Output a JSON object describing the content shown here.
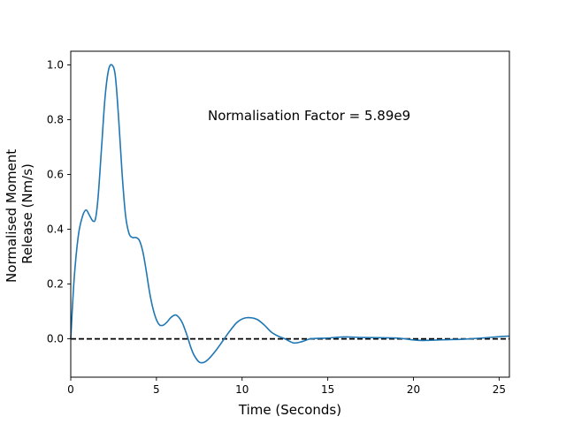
{
  "chart_data": {
    "type": "line",
    "title": "",
    "xlabel": "Time (Seconds)",
    "ylabel_lines": [
      "Normalised Moment",
      "Release (Nm/s)"
    ],
    "annotation": "Normalisation Factor = 5.89e9",
    "xlim": [
      0,
      25.6
    ],
    "ylim": [
      -0.14,
      1.05
    ],
    "x_ticks": [
      0,
      5,
      10,
      15,
      20,
      25
    ],
    "y_ticks": [
      0.0,
      0.2,
      0.4,
      0.6,
      0.8,
      1.0
    ],
    "x_tick_labels": [
      "0",
      "5",
      "10",
      "15",
      "20",
      "25"
    ],
    "y_tick_labels": [
      "0.0",
      "0.2",
      "0.4",
      "0.6",
      "0.8",
      "1.0"
    ],
    "grid": false,
    "reference_line": {
      "y": 0,
      "style": "dashed",
      "color": "#000000"
    },
    "series": [
      {
        "color": "#1f77b4",
        "x": [
          0,
          0.2,
          0.45,
          0.7,
          0.9,
          1.1,
          1.3,
          1.45,
          1.6,
          1.8,
          2.0,
          2.2,
          2.4,
          2.6,
          2.8,
          3.0,
          3.2,
          3.4,
          3.6,
          3.8,
          4.0,
          4.2,
          4.4,
          4.6,
          4.8,
          5.0,
          5.2,
          5.4,
          5.6,
          5.8,
          6.0,
          6.2,
          6.5,
          6.8,
          7.0,
          7.2,
          7.5,
          7.8,
          8.1,
          8.5,
          8.9,
          9.3,
          9.7,
          10.1,
          10.5,
          10.9,
          11.3,
          11.7,
          12.1,
          12.5,
          13.0,
          13.5,
          14.0,
          15.0,
          16.0,
          17.0,
          18.0,
          19.0,
          19.5,
          20.0,
          20.5,
          21.0,
          22.0,
          23.0,
          24.0,
          25.0,
          25.6
        ],
        "y": [
          0.0,
          0.22,
          0.38,
          0.45,
          0.47,
          0.45,
          0.43,
          0.44,
          0.52,
          0.7,
          0.88,
          0.98,
          1.0,
          0.96,
          0.8,
          0.6,
          0.45,
          0.385,
          0.37,
          0.37,
          0.36,
          0.32,
          0.25,
          0.17,
          0.11,
          0.07,
          0.05,
          0.05,
          0.06,
          0.075,
          0.085,
          0.085,
          0.06,
          0.01,
          -0.03,
          -0.06,
          -0.085,
          -0.085,
          -0.07,
          -0.04,
          -0.005,
          0.03,
          0.06,
          0.075,
          0.077,
          0.07,
          0.05,
          0.025,
          0.01,
          0.0,
          -0.015,
          -0.01,
          0.0,
          0.003,
          0.007,
          0.005,
          0.004,
          0.003,
          0.0,
          -0.004,
          -0.006,
          -0.005,
          -0.003,
          -0.001,
          0.003,
          0.008,
          0.01
        ]
      }
    ]
  }
}
